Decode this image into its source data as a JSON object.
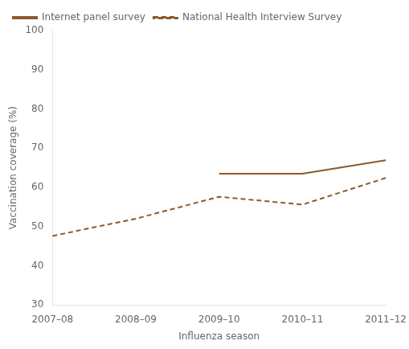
{
  "chart_data": {
    "type": "line",
    "categories": [
      "2007–08",
      "2008–09",
      "2009–10",
      "2010–11",
      "2011–12"
    ],
    "series": [
      {
        "name": "Internet panel survey",
        "color": "#8B5A2B",
        "line_style": "solid",
        "values": [
          null,
          null,
          63.5,
          63.5,
          66.9
        ]
      },
      {
        "name": "National Health Interview Survey",
        "color": "#8B5A2B",
        "line_style": "dashed",
        "values": [
          47.6,
          52.0,
          57.6,
          55.6,
          62.4
        ]
      }
    ],
    "xlabel": "Influenza season",
    "ylabel": "Vaccination coverage (%)",
    "ylim": [
      30,
      100
    ],
    "yticks": [
      30,
      40,
      50,
      60,
      70,
      80,
      90,
      100
    ],
    "grid": false,
    "legend": "upper left"
  }
}
